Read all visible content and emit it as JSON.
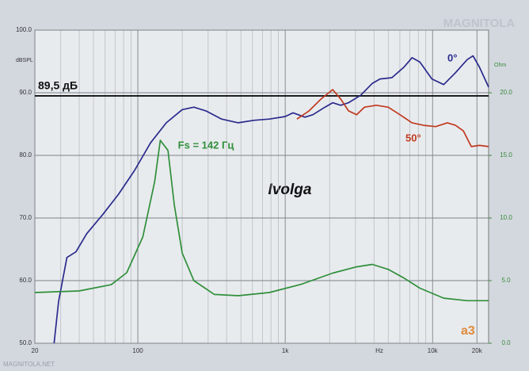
{
  "chart_data": {
    "type": "line",
    "title": "Ivolga",
    "ylabel": "dBSPL",
    "y2label": "Ohm",
    "xlabel": "Hz",
    "log_x": true,
    "grid": true,
    "xlim": [
      20,
      24000
    ],
    "xticks": [
      20,
      100,
      {
        "value": 1000,
        "label": "1k"
      },
      {
        "value": 10000,
        "label": "10k"
      },
      {
        "value": 20000,
        "label": "20k"
      }
    ],
    "x_minor_ticks": [
      30,
      40,
      50,
      60,
      70,
      80,
      90,
      200,
      300,
      400,
      500,
      600,
      700,
      800,
      900,
      2000,
      3000,
      4000,
      5000,
      6000,
      7000,
      8000,
      9000
    ],
    "ylim": [
      50,
      100
    ],
    "yticks": [
      {
        "value": 50,
        "label": "50.0"
      },
      {
        "value": 60,
        "label": "60.0"
      },
      {
        "value": 70,
        "label": "70.0"
      },
      {
        "value": 80,
        "label": "80.0"
      },
      {
        "value": 90,
        "label": "90.0"
      },
      {
        "value": 100,
        "label": "100.0"
      }
    ],
    "y2lim": [
      0,
      25
    ],
    "y2ticks": [
      {
        "value": 0,
        "label": "0.0"
      },
      {
        "value": 5,
        "label": "5.0"
      },
      {
        "value": 10,
        "label": "10.0"
      },
      {
        "value": 15,
        "label": "15.0"
      },
      {
        "value": 20,
        "label": "20.0"
      }
    ],
    "reference_line": {
      "value": 89.5,
      "label": "89,5 дБ",
      "color": "#111111"
    },
    "series": [
      {
        "name": "0°",
        "color": "#2a2a8c",
        "x": [
          27,
          29,
          33,
          38,
          45,
          58,
          74,
          95,
          122,
          156,
          200,
          240,
          290,
          370,
          480,
          610,
          780,
          1000,
          1130,
          1360,
          1540,
          1860,
          2100,
          2380,
          2690,
          3250,
          3900,
          4400,
          5300,
          6400,
          7250,
          8200,
          9900,
          11900,
          14300,
          17200,
          18800,
          20800,
          24000
        ],
        "values": [
          50,
          56.7,
          63.7,
          64.6,
          67.5,
          70.6,
          73.8,
          77.6,
          82.0,
          85.2,
          87.3,
          87.7,
          87.1,
          85.8,
          85.2,
          85.6,
          85.8,
          86.2,
          86.8,
          86.1,
          86.5,
          87.7,
          88.4,
          88.0,
          88.4,
          89.6,
          91.5,
          92.2,
          92.4,
          94.1,
          95.6,
          94.9,
          92.2,
          91.3,
          93.2,
          95.3,
          95.9,
          94.1,
          90.9
        ]
      },
      {
        "name": "50°",
        "color": "#c0391f",
        "x": [
          1200,
          1450,
          1750,
          2100,
          2380,
          2690,
          3050,
          3450,
          4150,
          5000,
          6000,
          7250,
          8700,
          10500,
          12600,
          14300,
          16200,
          18300,
          20800,
          24000
        ],
        "values": [
          85.8,
          87.1,
          89.0,
          90.5,
          89.0,
          87.1,
          86.5,
          87.7,
          88.0,
          87.7,
          86.5,
          85.2,
          84.8,
          84.6,
          85.2,
          84.8,
          83.9,
          81.4,
          81.6,
          81.4
        ]
      },
      {
        "name": "Fs = 142 Гц",
        "color": "#2f8f3a",
        "axis": "y2",
        "x": [
          20,
          40,
          66,
          84,
          108,
          130,
          142,
          160,
          177,
          200,
          240,
          330,
          480,
          780,
          1280,
          2100,
          3050,
          3900,
          5000,
          6400,
          8200,
          11900,
          17200,
          24000
        ],
        "values": [
          4.05,
          4.18,
          4.68,
          5.63,
          8.48,
          12.9,
          16.2,
          15.4,
          11.0,
          7.2,
          5.0,
          3.9,
          3.8,
          4.05,
          4.7,
          5.6,
          6.1,
          6.3,
          5.9,
          5.2,
          4.4,
          3.6,
          3.4,
          3.4
        ]
      }
    ],
    "watermarks": [
      "MAGNITOLA",
      "MAGNITOLA.NET",
      "a3"
    ]
  }
}
